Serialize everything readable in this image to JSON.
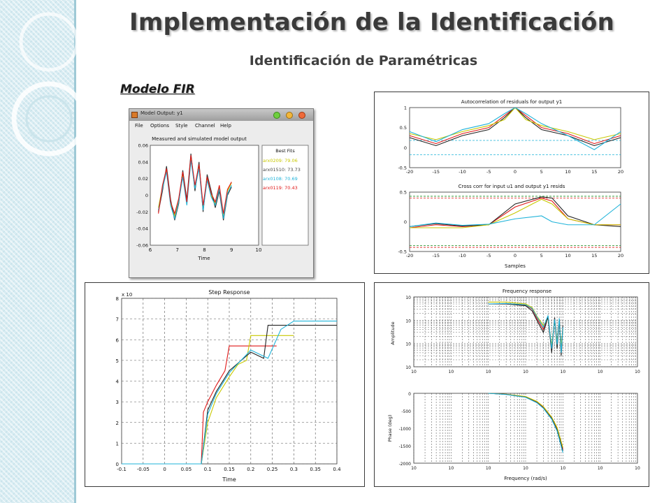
{
  "slide": {
    "title": "Implementación de la Identificación",
    "subtitle": "Identificación de Paramétricas",
    "model_label": "Modelo FIR"
  },
  "model_window": {
    "window_title": "Model Output: y1",
    "menu": [
      "File",
      "Options",
      "Style",
      "Channel",
      "Help"
    ],
    "plot_title": "Measured and simulated model output",
    "xlabel": "Time",
    "legend_title": "Best Fits",
    "legend": [
      {
        "label": "arx0209: 79.06",
        "color": "#c8c800"
      },
      {
        "label": "arx01510: 73.73",
        "color": "#333333"
      },
      {
        "label": "arx0108: 70.69",
        "color": "#1fb3d9"
      },
      {
        "label": "arx0119: 70.43",
        "color": "#e01818"
      }
    ]
  },
  "colors": {
    "yellow": "#c8c800",
    "black": "#222222",
    "cyan": "#1fb3d9",
    "red": "#e01818",
    "green": "#1a8a1a"
  },
  "chart_data": [
    {
      "id": "model-output",
      "type": "line",
      "title": "Measured and simulated model output",
      "xlabel": "Time",
      "xlim": [
        6,
        10
      ],
      "ylim": [
        -0.06,
        0.06
      ],
      "xticks": [
        6,
        7,
        8,
        9,
        10
      ],
      "yticks": [
        0.06,
        0.04,
        0.02,
        0,
        -0.02,
        -0.04,
        -0.06
      ],
      "ytick_labels": [
        "0.06",
        "0.04",
        "0.02",
        "0",
        "-0.02",
        "-0.04",
        "-0.06"
      ],
      "x": [
        6.3,
        6.45,
        6.6,
        6.75,
        6.9,
        7.05,
        7.2,
        7.35,
        7.5,
        7.65,
        7.8,
        7.95,
        8.1,
        8.25,
        8.4,
        8.55,
        8.7,
        8.85,
        9.0
      ],
      "series": [
        {
          "name": "arx0209: 79.06",
          "color": "#c8c800",
          "values": [
            -0.015,
            0.01,
            0.03,
            -0.01,
            -0.025,
            -0.005,
            0.025,
            -0.01,
            0.045,
            0.01,
            0.035,
            -0.015,
            0.02,
            0.0,
            -0.01,
            0.01,
            -0.025,
            0.005,
            0.015
          ]
        },
        {
          "name": "arx01510: 73.73",
          "color": "#333333",
          "values": [
            -0.02,
            0.005,
            0.035,
            -0.005,
            -0.03,
            -0.01,
            0.03,
            -0.005,
            0.05,
            0.005,
            0.04,
            -0.02,
            0.025,
            0.005,
            -0.015,
            0.005,
            -0.03,
            0.0,
            0.01
          ]
        },
        {
          "name": "arx0108: 70.69",
          "color": "#1fb3d9",
          "values": [
            -0.018,
            0.008,
            0.028,
            -0.012,
            -0.028,
            -0.008,
            0.022,
            -0.012,
            0.042,
            0.008,
            0.032,
            -0.018,
            0.018,
            -0.002,
            -0.012,
            0.008,
            -0.028,
            0.002,
            0.012
          ]
        },
        {
          "name": "arx0119: 70.43",
          "color": "#e01818",
          "values": [
            -0.022,
            0.012,
            0.032,
            -0.008,
            -0.022,
            -0.004,
            0.028,
            -0.008,
            0.048,
            0.012,
            0.037,
            -0.012,
            0.022,
            0.002,
            -0.008,
            0.012,
            -0.022,
            0.007,
            0.016
          ]
        }
      ]
    },
    {
      "id": "autocorrelation",
      "type": "line",
      "title": "Autocorrelation of residuals for output y1",
      "xlim": [
        -20,
        20
      ],
      "ylim": [
        -0.5,
        1
      ],
      "xticks": [
        -20,
        -15,
        -10,
        -5,
        0,
        5,
        10,
        15,
        20
      ],
      "yticks": [
        1,
        0.5,
        0,
        -0.5
      ],
      "ytick_labels": [
        "1",
        "0.5",
        "0",
        "-0.5"
      ],
      "x": [
        -20,
        -15,
        -10,
        -5,
        -2,
        0,
        2,
        5,
        10,
        15,
        20
      ],
      "series": [
        {
          "color": "#e01818",
          "values": [
            0.3,
            0.1,
            0.35,
            0.5,
            0.8,
            1.0,
            0.8,
            0.5,
            0.35,
            0.1,
            0.3
          ]
        },
        {
          "color": "#222222",
          "values": [
            0.25,
            0.05,
            0.3,
            0.45,
            0.75,
            1.0,
            0.75,
            0.45,
            0.3,
            0.05,
            0.25
          ]
        },
        {
          "color": "#c8c800",
          "values": [
            0.35,
            0.2,
            0.4,
            0.55,
            0.7,
            1.0,
            0.7,
            0.55,
            0.4,
            0.2,
            0.35
          ]
        },
        {
          "color": "#1fb3d9",
          "values": [
            0.4,
            0.15,
            0.45,
            0.6,
            0.85,
            1.0,
            0.85,
            0.6,
            0.3,
            -0.05,
            0.4
          ]
        }
      ],
      "conf_bands": [
        0.18,
        -0.18
      ]
    },
    {
      "id": "cross-correlation",
      "type": "line",
      "title": "Cross corr for input u1 and output y1 resids",
      "xlabel": "Samples",
      "xlim": [
        -20,
        20
      ],
      "ylim": [
        -0.5,
        0.5
      ],
      "xticks": [
        -20,
        -15,
        -10,
        -5,
        0,
        5,
        10,
        15,
        20
      ],
      "yticks": [
        0.5,
        0,
        -0.5
      ],
      "ytick_labels": [
        "0.5",
        "0",
        "-0.5"
      ],
      "x": [
        -20,
        -15,
        -10,
        -5,
        0,
        5,
        7,
        10,
        15,
        20
      ],
      "series": [
        {
          "color": "#e01818",
          "values": [
            -0.1,
            -0.05,
            -0.08,
            -0.05,
            0.25,
            0.4,
            0.35,
            0.05,
            -0.05,
            -0.05
          ]
        },
        {
          "color": "#222222",
          "values": [
            -0.08,
            -0.03,
            -0.07,
            -0.05,
            0.3,
            0.42,
            0.4,
            0.1,
            -0.05,
            -0.08
          ]
        },
        {
          "color": "#c8c800",
          "values": [
            -0.1,
            -0.1,
            -0.1,
            -0.05,
            0.15,
            0.38,
            0.3,
            0.05,
            -0.05,
            -0.05
          ]
        },
        {
          "color": "#1fb3d9",
          "values": [
            -0.08,
            -0.02,
            -0.06,
            -0.04,
            0.05,
            0.1,
            0.0,
            -0.05,
            -0.05,
            0.3
          ]
        }
      ],
      "conf_bands": [
        0.43,
        0.4,
        -0.4,
        -0.43
      ]
    },
    {
      "id": "step-response",
      "type": "line",
      "title": "Step Response",
      "xlabel": "Time",
      "xlim": [
        -0.1,
        0.4
      ],
      "ylim": [
        0,
        8
      ],
      "y_multiplier": "x 10",
      "xticks": [
        -0.1,
        -0.05,
        0,
        0.05,
        0.1,
        0.15,
        0.2,
        0.25,
        0.3,
        0.35,
        0.4
      ],
      "xtick_labels": [
        "-0.1",
        "-0.05",
        "0",
        "0.05",
        "0.1",
        "0.15",
        "0.2",
        "0.25",
        "0.3",
        "0.35",
        "0.4"
      ],
      "yticks": [
        0,
        1,
        2,
        3,
        4,
        5,
        6,
        7,
        8
      ],
      "series": [
        {
          "color": "#e01818",
          "x": [
            -0.1,
            0.085,
            0.09,
            0.1,
            0.12,
            0.14,
            0.15,
            0.26
          ],
          "values": [
            0,
            0,
            2.5,
            3.0,
            3.8,
            4.5,
            5.7,
            5.7
          ]
        },
        {
          "color": "#c8c800",
          "x": [
            -0.1,
            0.085,
            0.1,
            0.12,
            0.15,
            0.17,
            0.19,
            0.2,
            0.3
          ],
          "values": [
            0,
            0,
            2.0,
            3.2,
            4.2,
            4.8,
            5.0,
            6.2,
            6.2
          ]
        },
        {
          "color": "#222222",
          "x": [
            -0.1,
            0.085,
            0.1,
            0.12,
            0.15,
            0.2,
            0.23,
            0.24,
            0.4
          ],
          "values": [
            0,
            0,
            2.6,
            3.5,
            4.5,
            5.4,
            5.1,
            6.7,
            6.7
          ]
        },
        {
          "color": "#1fb3d9",
          "x": [
            -0.1,
            0.085,
            0.1,
            0.12,
            0.15,
            0.2,
            0.24,
            0.27,
            0.3,
            0.4
          ],
          "values": [
            0,
            0,
            2.4,
            3.4,
            4.4,
            5.5,
            5.1,
            6.5,
            6.9,
            6.9
          ]
        }
      ]
    },
    {
      "id": "frequency-amplitude",
      "type": "line",
      "title": "Frequency response",
      "ylabel": "Amplitude",
      "x_log": true,
      "y_log": true,
      "xlim": [
        0.001,
        1000
      ],
      "ylim": [
        0.01,
        10
      ],
      "x": [
        0.1,
        0.3,
        1,
        1.5,
        2,
        3,
        4,
        5,
        6,
        7,
        8,
        9,
        10
      ],
      "series": [
        {
          "color": "#e01818",
          "values": [
            5,
            5,
            4.5,
            3,
            1.2,
            0.4,
            1.5,
            0.05,
            1.2,
            0.1,
            1.0,
            0.05,
            0.5
          ]
        },
        {
          "color": "#c8c800",
          "values": [
            6,
            6,
            5,
            3.5,
            1.5,
            0.6,
            1.2,
            0.08,
            1.0,
            0.12,
            0.9,
            0.08,
            0.4
          ]
        },
        {
          "color": "#222222",
          "values": [
            5,
            5,
            4.2,
            2.5,
            1.0,
            0.3,
            1.4,
            0.04,
            1.3,
            0.06,
            1.1,
            0.03,
            0.6
          ]
        },
        {
          "color": "#1fb3d9",
          "values": [
            5,
            5.2,
            4.6,
            3.2,
            1.4,
            0.5,
            1.6,
            0.06,
            1.1,
            0.09,
            1.2,
            0.04,
            0.5
          ]
        }
      ]
    },
    {
      "id": "frequency-phase",
      "type": "line",
      "ylabel": "Phase (deg)",
      "xlabel": "Frequency (rad/s)",
      "x_log": true,
      "xlim": [
        0.001,
        1000
      ],
      "ylim": [
        -2000,
        0
      ],
      "yticks": [
        0,
        -500,
        -1000,
        -1500,
        -2000
      ],
      "ytick_labels": [
        "0",
        "-500",
        "-1000",
        "-1500",
        "-2000"
      ],
      "x": [
        0.1,
        0.3,
        1,
        2,
        3,
        5,
        7,
        10
      ],
      "series": [
        {
          "color": "#e01818",
          "values": [
            0,
            -30,
            -100,
            -250,
            -400,
            -700,
            -1000,
            -1600
          ]
        },
        {
          "color": "#c8c800",
          "values": [
            0,
            -25,
            -90,
            -230,
            -380,
            -680,
            -980,
            -1550
          ]
        },
        {
          "color": "#222222",
          "values": [
            0,
            -30,
            -110,
            -260,
            -420,
            -720,
            -1050,
            -1650
          ]
        },
        {
          "color": "#1fb3d9",
          "values": [
            0,
            -35,
            -115,
            -270,
            -430,
            -740,
            -1080,
            -1700
          ]
        }
      ]
    }
  ]
}
